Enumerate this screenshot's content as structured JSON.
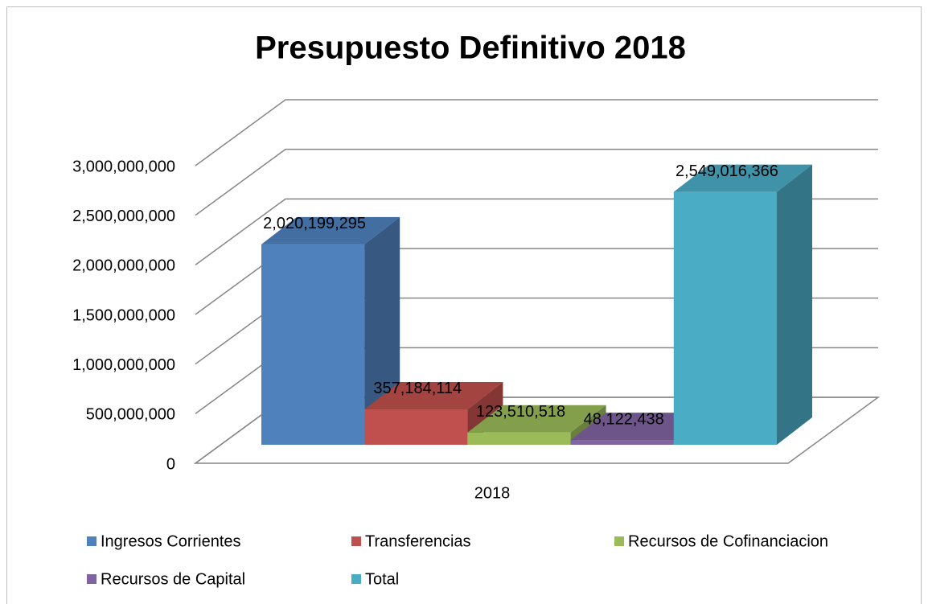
{
  "chart_data": {
    "type": "bar3d",
    "title": "Presupuesto Definitivo 2018",
    "categories": [
      "2018"
    ],
    "series": [
      {
        "name": "Ingresos Corrientes",
        "color": "#4f81bd",
        "values": [
          2020199295
        ],
        "value_labels": [
          "2,020,199,295"
        ]
      },
      {
        "name": "Transferencias",
        "color": "#c0504d",
        "values": [
          357184114
        ],
        "value_labels": [
          "357,184,114"
        ]
      },
      {
        "name": "Recursos de Cofinanciacion",
        "color": "#9bbb59",
        "values": [
          123510518
        ],
        "value_labels": [
          "123,510,518"
        ]
      },
      {
        "name": "Recursos de Capital",
        "color": "#8064a2",
        "values": [
          48122438
        ],
        "value_labels": [
          "48,122,438"
        ]
      },
      {
        "name": "Total",
        "color": "#4bacc6",
        "values": [
          2549016366
        ],
        "value_labels": [
          "2,549,016,366"
        ]
      }
    ],
    "ylim": [
      0,
      3000000000
    ],
    "yticks": [
      0,
      {
        "value": 500000000,
        "label": "500,000,000"
      },
      {
        "value": 1000000000,
        "label": "1,000,000,000"
      },
      {
        "value": 1500000000,
        "label": "1,500,000,000"
      },
      {
        "value": 2000000000,
        "label": "2,000,000,000"
      },
      {
        "value": 2500000000,
        "label": "2,500,000,000"
      },
      {
        "value": 3000000000,
        "label": "3,000,000,000"
      }
    ],
    "grid": true,
    "legend": "bottom"
  }
}
